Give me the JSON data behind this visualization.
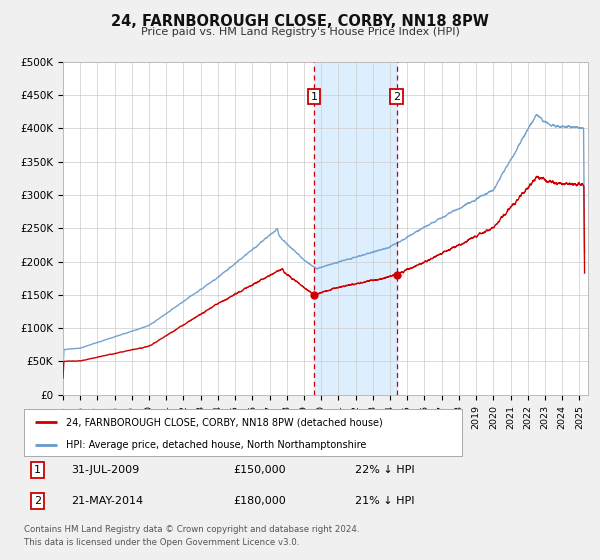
{
  "title": "24, FARNBOROUGH CLOSE, CORBY, NN18 8PW",
  "subtitle": "Price paid vs. HM Land Registry's House Price Index (HPI)",
  "legend_line1": "24, FARNBOROUGH CLOSE, CORBY, NN18 8PW (detached house)",
  "legend_line2": "HPI: Average price, detached house, North Northamptonshire",
  "footnote1": "Contains HM Land Registry data © Crown copyright and database right 2024.",
  "footnote2": "This data is licensed under the Open Government Licence v3.0.",
  "sale1_label": "1",
  "sale1_date": "31-JUL-2009",
  "sale1_price": 150000,
  "sale1_price_str": "£150,000",
  "sale1_pct": "22% ↓ HPI",
  "sale1_year": 2009.58,
  "sale2_label": "2",
  "sale2_date": "21-MAY-2014",
  "sale2_price": 180000,
  "sale2_price_str": "£180,000",
  "sale2_pct": "21% ↓ HPI",
  "sale2_year": 2014.38,
  "red_color": "#cc0000",
  "blue_color": "#6699cc",
  "shade_color": "#ddeeff",
  "bg_color": "#f0f0f0",
  "plot_bg": "#ffffff",
  "grid_color": "#cccccc",
  "ylim": [
    0,
    500000
  ],
  "xlim_start": 1995.0,
  "xlim_end": 2025.5,
  "yticks": [
    0,
    50000,
    100000,
    150000,
    200000,
    250000,
    300000,
    350000,
    400000,
    450000,
    500000
  ],
  "ytick_labels": [
    "£0",
    "£50K",
    "£100K",
    "£150K",
    "£200K",
    "£250K",
    "£300K",
    "£350K",
    "£400K",
    "£450K",
    "£500K"
  ]
}
